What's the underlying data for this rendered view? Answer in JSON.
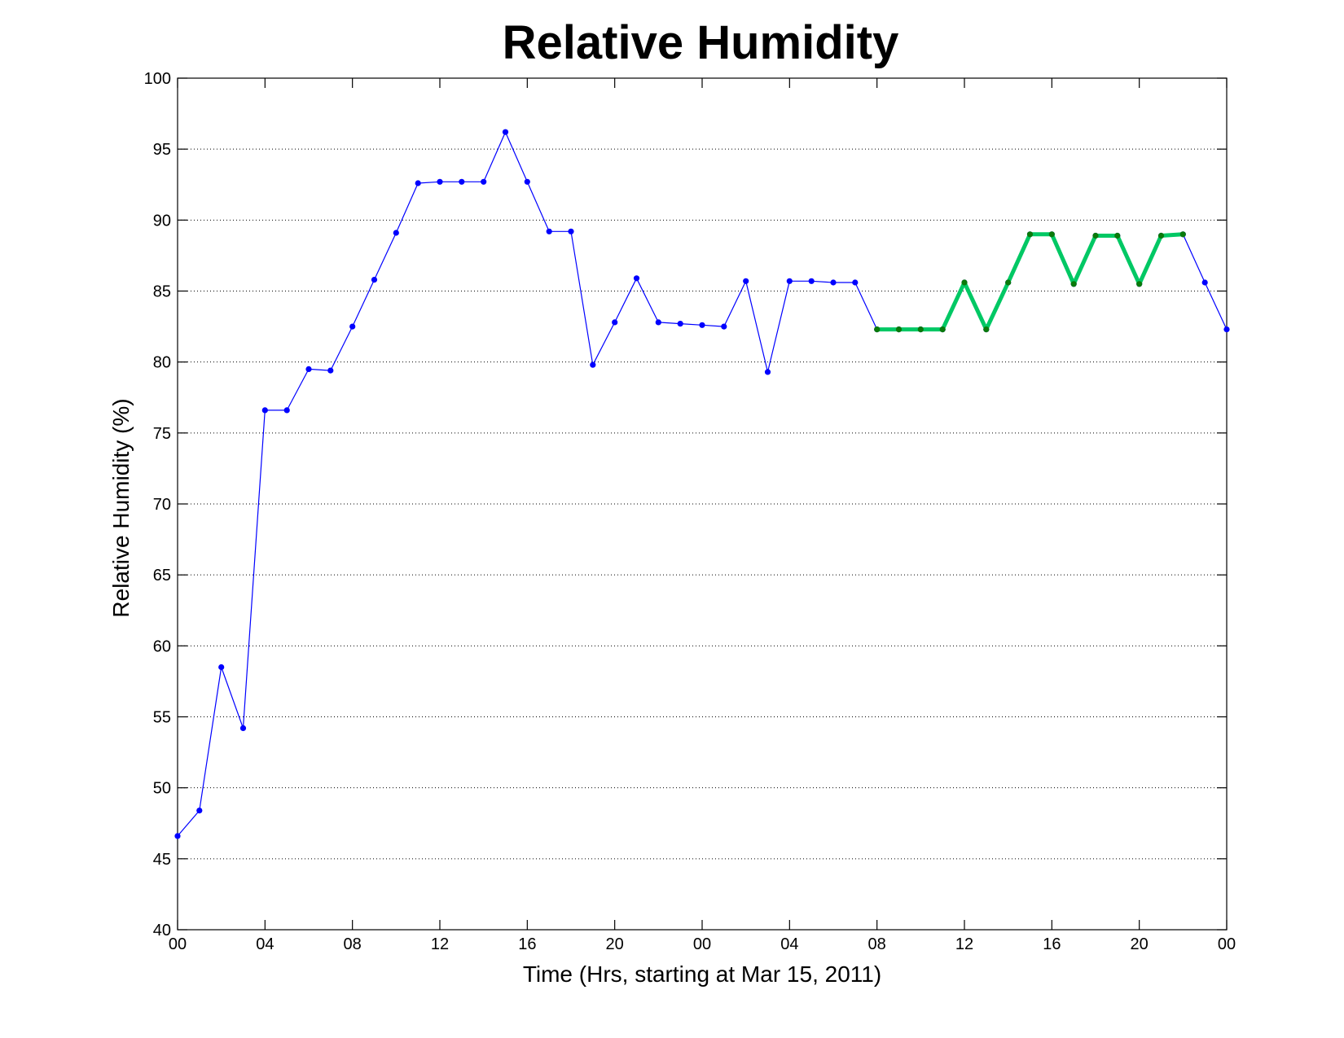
{
  "chart_data": {
    "type": "line",
    "title": "Relative Humidity",
    "xlabel": "Time (Hrs, starting at Mar 15, 2011)",
    "ylabel": "Relative Humidity (%)",
    "xlim": [
      0,
      48
    ],
    "ylim": [
      40,
      100
    ],
    "grid": "horizontal dotted",
    "x_ticks": [
      {
        "x": 0,
        "label": "00"
      },
      {
        "x": 4,
        "label": "04"
      },
      {
        "x": 8,
        "label": "08"
      },
      {
        "x": 12,
        "label": "12"
      },
      {
        "x": 16,
        "label": "16"
      },
      {
        "x": 20,
        "label": "20"
      },
      {
        "x": 24,
        "label": "00"
      },
      {
        "x": 28,
        "label": "04"
      },
      {
        "x": 32,
        "label": "08"
      },
      {
        "x": 36,
        "label": "12"
      },
      {
        "x": 40,
        "label": "16"
      },
      {
        "x": 44,
        "label": "20"
      },
      {
        "x": 48,
        "label": "00"
      }
    ],
    "y_ticks": [
      40,
      45,
      50,
      55,
      60,
      65,
      70,
      75,
      80,
      85,
      90,
      95,
      100
    ],
    "series": [
      {
        "color": "#0000ff",
        "x": [
          0,
          1,
          2,
          3,
          4,
          5,
          6,
          7,
          8,
          9,
          10,
          11,
          12,
          13,
          14,
          15,
          16,
          17,
          18,
          19,
          20,
          21,
          22,
          23,
          24,
          25,
          26,
          27,
          28,
          29,
          30,
          31,
          32,
          33,
          34,
          35,
          36,
          37,
          38,
          39,
          40,
          41,
          42,
          43,
          44,
          45,
          46,
          47,
          48
        ],
        "values": [
          46.6,
          48.4,
          58.5,
          54.2,
          76.6,
          76.6,
          79.5,
          79.4,
          82.5,
          85.8,
          89.1,
          92.6,
          92.7,
          92.7,
          92.7,
          96.2,
          92.7,
          89.2,
          89.2,
          79.8,
          82.8,
          85.9,
          82.8,
          82.7,
          82.6,
          82.5,
          85.7,
          79.3,
          85.7,
          85.7,
          85.6,
          85.6,
          82.3,
          82.3,
          82.3,
          82.3,
          85.6,
          82.3,
          85.6,
          89.0,
          89.0,
          85.5,
          88.9,
          88.9,
          85.5,
          88.9,
          89.0,
          85.6,
          82.3
        ]
      },
      {
        "color": "#00c864",
        "x": [
          32,
          33,
          34,
          35,
          36,
          37,
          38,
          39,
          40,
          41,
          42,
          43,
          44,
          45,
          46
        ],
        "values": [
          82.3,
          82.3,
          82.3,
          82.3,
          85.6,
          82.3,
          85.6,
          89.0,
          89.0,
          85.5,
          88.9,
          88.9,
          85.5,
          88.9,
          89.0
        ]
      }
    ]
  }
}
